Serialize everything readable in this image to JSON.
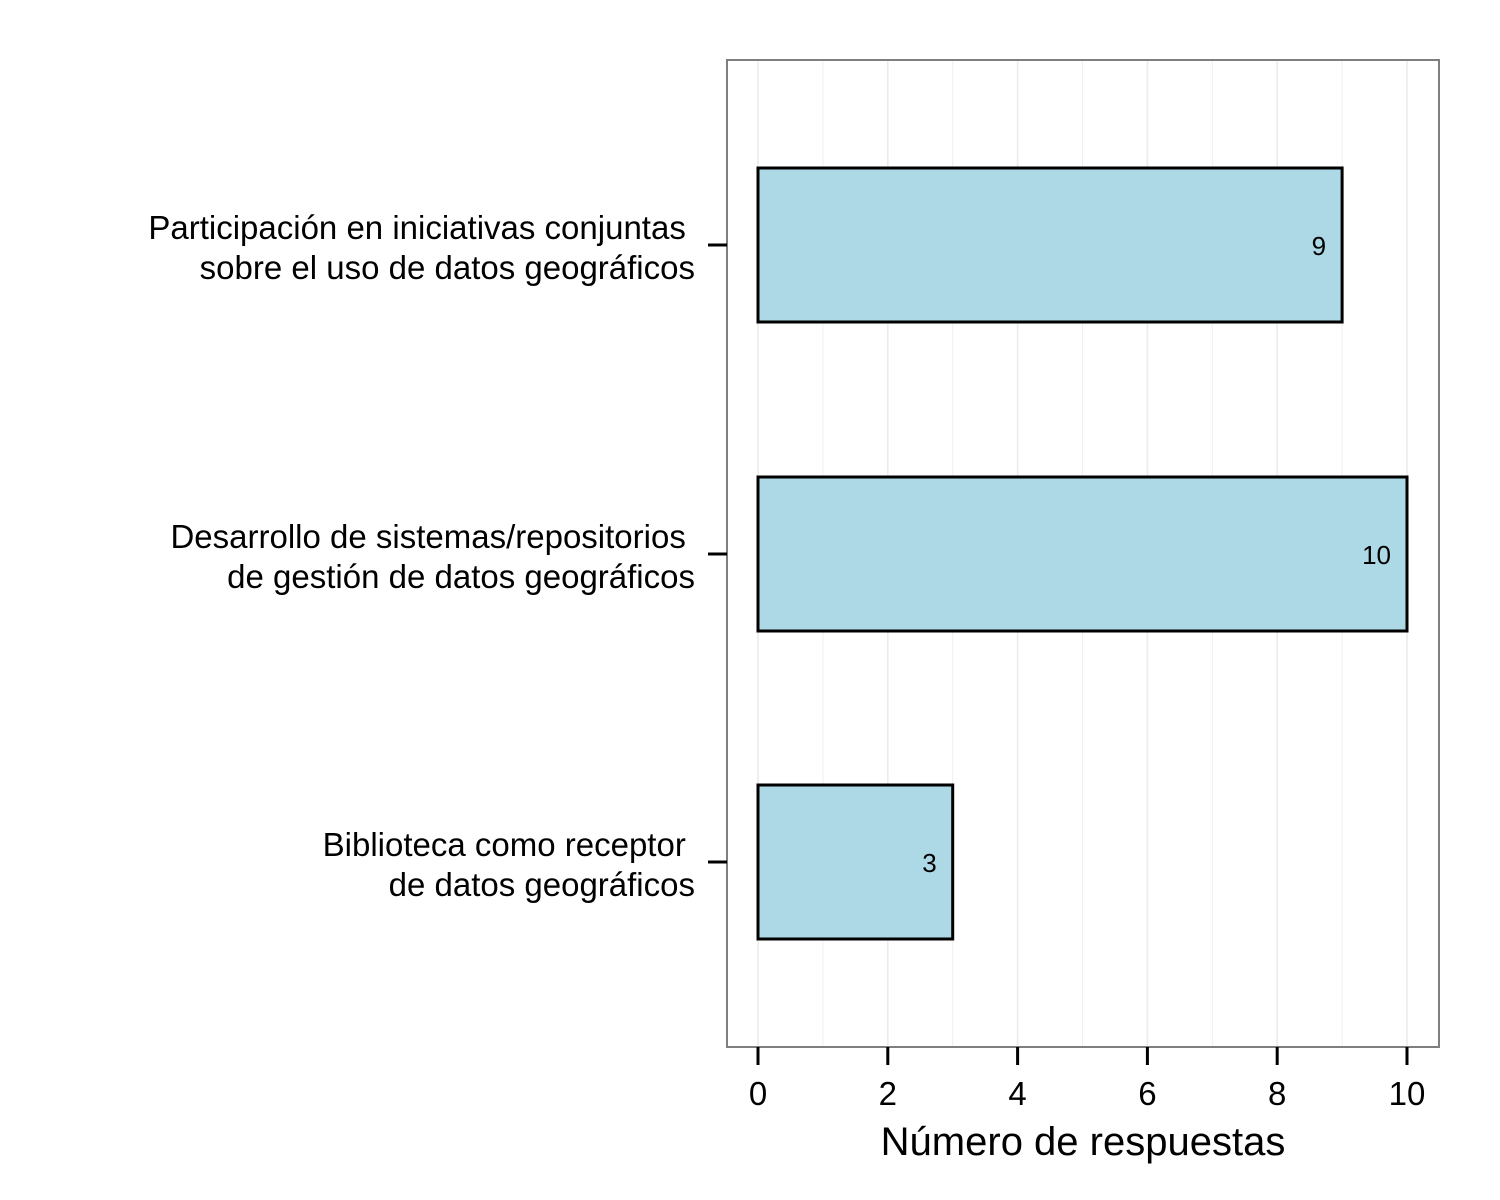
{
  "chart_data": {
    "type": "bar",
    "orientation": "horizontal",
    "categories": [
      [
        "Participación en iniciativas conjuntas ",
        "sobre el uso de datos geográficos"
      ],
      [
        "Desarrollo de sistemas/repositorios ",
        "de gestión de datos geográficos"
      ],
      [
        "Biblioteca como receptor ",
        "de datos geográficos"
      ]
    ],
    "values": [
      9,
      10,
      3
    ],
    "data_labels": [
      "9",
      "10",
      "3"
    ],
    "xlabel": "Número de respuestas",
    "ylabel": "",
    "title": "",
    "xlim": [
      0,
      10
    ],
    "xticks": [
      "0",
      "2",
      "4",
      "6",
      "8",
      "10"
    ],
    "grid": true,
    "legend": "none",
    "colors": {
      "bar_fill": "#add8e6",
      "bar_stroke": "#000000",
      "grid": "#ebebeb",
      "panel_border": "#7f7f7f"
    }
  }
}
